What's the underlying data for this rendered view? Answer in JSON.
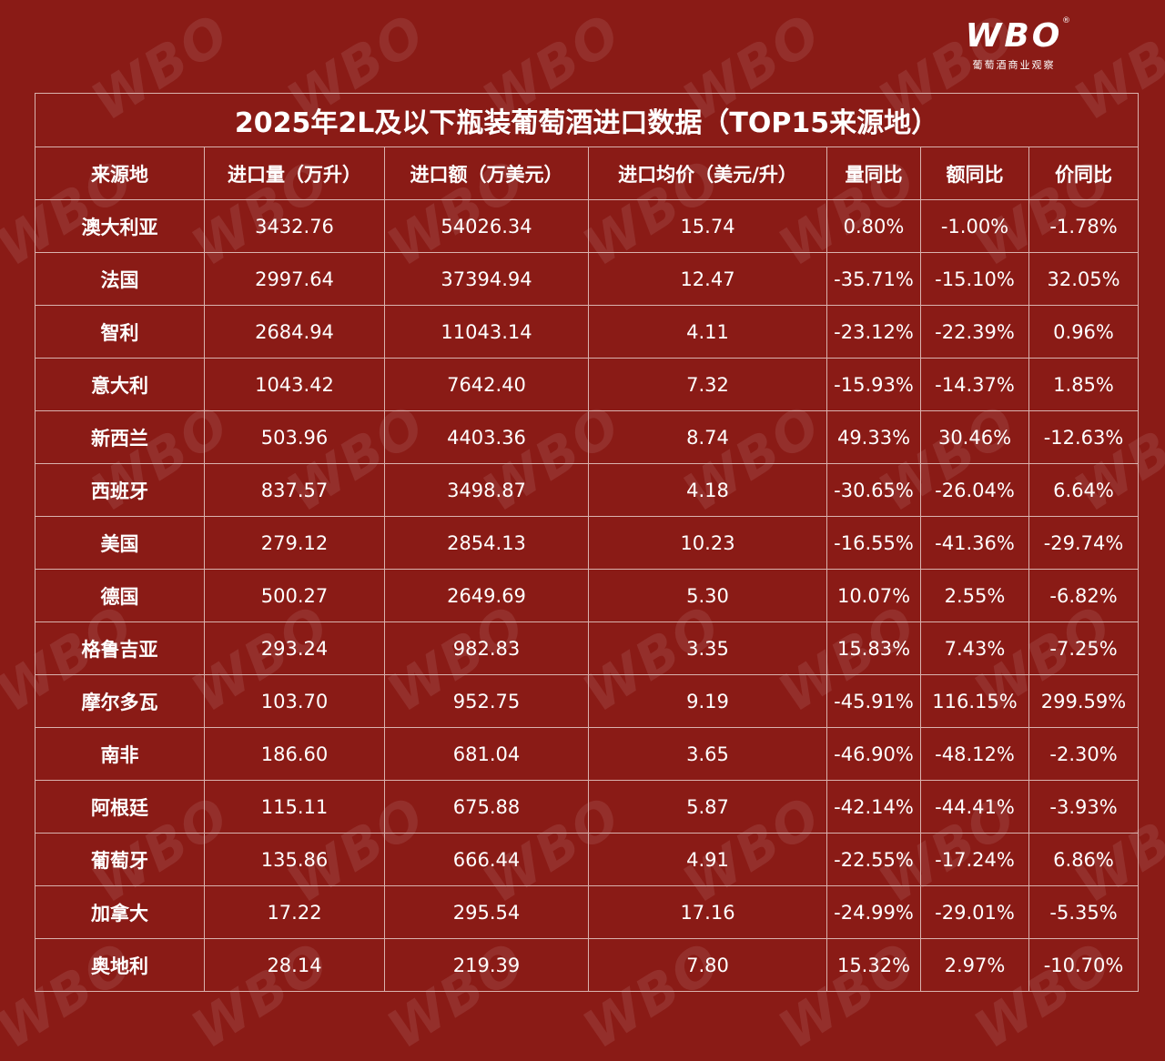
{
  "brand": {
    "mark": "WBO",
    "registered": "®",
    "subtitle": "葡萄酒商业观察",
    "watermark": "WBO"
  },
  "table": {
    "title": "2025年2L及以下瓶装葡萄酒进口数据（TOP15来源地）",
    "headers": [
      "来源地",
      "进口量（万升）",
      "进口额（万美元）",
      "进口均价（美元/升）",
      "量同比",
      "额同比",
      "价同比"
    ],
    "rows": [
      [
        "澳大利亚",
        "3432.76",
        "54026.34",
        "15.74",
        "0.80%",
        "-1.00%",
        "-1.78%"
      ],
      [
        "法国",
        "2997.64",
        "37394.94",
        "12.47",
        "-35.71%",
        "-15.10%",
        "32.05%"
      ],
      [
        "智利",
        "2684.94",
        "11043.14",
        "4.11",
        "-23.12%",
        "-22.39%",
        "0.96%"
      ],
      [
        "意大利",
        "1043.42",
        "7642.40",
        "7.32",
        "-15.93%",
        "-14.37%",
        "1.85%"
      ],
      [
        "新西兰",
        "503.96",
        "4403.36",
        "8.74",
        "49.33%",
        "30.46%",
        "-12.63%"
      ],
      [
        "西班牙",
        "837.57",
        "3498.87",
        "4.18",
        "-30.65%",
        "-26.04%",
        "6.64%"
      ],
      [
        "美国",
        "279.12",
        "2854.13",
        "10.23",
        "-16.55%",
        "-41.36%",
        "-29.74%"
      ],
      [
        "德国",
        "500.27",
        "2649.69",
        "5.30",
        "10.07%",
        "2.55%",
        "-6.82%"
      ],
      [
        "格鲁吉亚",
        "293.24",
        "982.83",
        "3.35",
        "15.83%",
        "7.43%",
        "-7.25%"
      ],
      [
        "摩尔多瓦",
        "103.70",
        "952.75",
        "9.19",
        "-45.91%",
        "116.15%",
        "299.59%"
      ],
      [
        "南非",
        "186.60",
        "681.04",
        "3.65",
        "-46.90%",
        "-48.12%",
        "-2.30%"
      ],
      [
        "阿根廷",
        "115.11",
        "675.88",
        "5.87",
        "-42.14%",
        "-44.41%",
        "-3.93%"
      ],
      [
        "葡萄牙",
        "135.86",
        "666.44",
        "4.91",
        "-22.55%",
        "-17.24%",
        "6.86%"
      ],
      [
        "加拿大",
        "17.22",
        "295.54",
        "17.16",
        "-24.99%",
        "-29.01%",
        "-5.35%"
      ],
      [
        "奥地利",
        "28.14",
        "219.39",
        "7.80",
        "15.32%",
        "2.97%",
        "-10.70%"
      ]
    ]
  }
}
